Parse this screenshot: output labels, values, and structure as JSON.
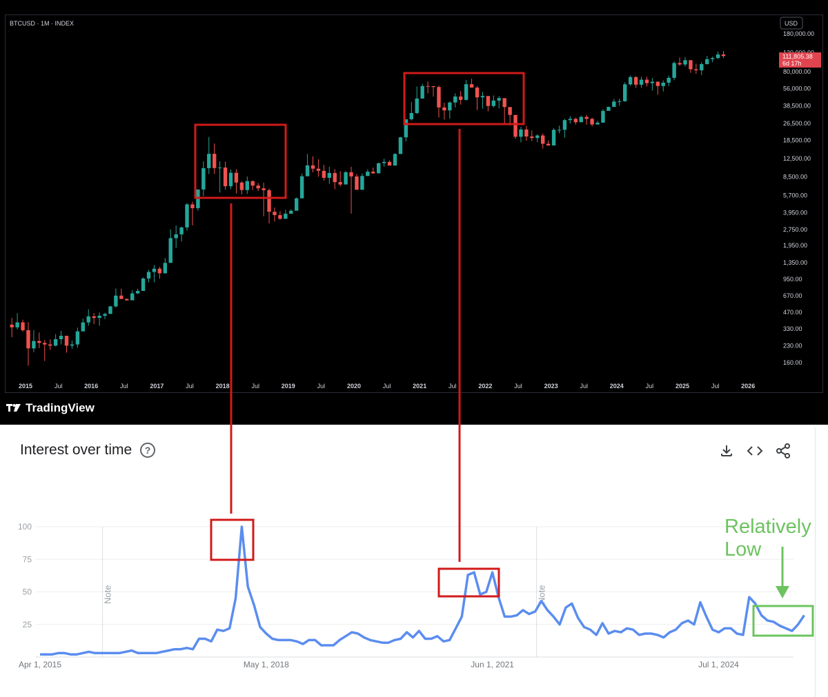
{
  "tradingview": {
    "symbol_label": "BTCUSD · 1M · INDEX",
    "currency_button": "USD",
    "brand": "TradingView",
    "price_badge": {
      "price": "111,805.38",
      "countdown": "6d 17h",
      "color": "#e0444e"
    },
    "colors": {
      "up": "#26a69a",
      "down": "#ef5350",
      "background": "#000000"
    }
  },
  "google_trends": {
    "title": "Interest over time",
    "help_icon": "help-circle-icon",
    "toolbar": {
      "download": "download-icon",
      "embed": "embed-code-icon",
      "share": "share-icon"
    },
    "note_label": "Note",
    "line_color": "#5b8def"
  },
  "annotations": {
    "relatively_low": [
      "Relatively",
      "Low"
    ],
    "box_color": "#d11a1a",
    "green_color": "#6cc35f"
  },
  "chart_data": [
    {
      "type": "candlestick",
      "title": "BTCUSD · 1M · INDEX",
      "y_scale": "log",
      "y_ticks": [
        160,
        230,
        330,
        470,
        670,
        950,
        1350,
        1950,
        2750,
        3950,
        5700,
        8500,
        12500,
        18500,
        26500,
        38500,
        56000,
        80000,
        120000,
        180000
      ],
      "y_tick_labels": [
        "160.00",
        "230.00",
        "330.00",
        "470.00",
        "670.00",
        "950.00",
        "1,350.00",
        "1,950.00",
        "2,750.00",
        "3,950.00",
        "5,700.00",
        "8,500.00",
        "12,500.00",
        "18,500.00",
        "26,500.00",
        "38,500.00",
        "56,000.00",
        "80,000.00",
        "120,000.00",
        "180,000.00"
      ],
      "x_tick_labels": [
        "2015",
        "Jul",
        "2016",
        "Jul",
        "2017",
        "Jul",
        "2018",
        "Jul",
        "2019",
        "Jul",
        "2020",
        "Jul",
        "2021",
        "Jul",
        "2022",
        "Jul",
        "2023",
        "Jul",
        "2024",
        "Jul",
        "2025",
        "Jul",
        "2026"
      ],
      "x_tick_years": [
        2015,
        2015.5,
        2016,
        2016.5,
        2017,
        2017.5,
        2018,
        2018.5,
        2019,
        2019.5,
        2020,
        2020.5,
        2021,
        2021.5,
        2022,
        2022.5,
        2023,
        2023.5,
        2024,
        2024.5,
        2025,
        2025.5,
        2026
      ],
      "start": "2014-10",
      "closes": [
        340,
        378,
        320,
        217,
        254,
        244,
        236,
        230,
        264,
        284,
        230,
        236,
        312,
        378,
        430,
        416,
        436,
        453,
        532,
        670,
        624,
        606,
        702,
        740,
        965,
        1110,
        1190,
        1080,
        1348,
        2286,
        2480,
        2875,
        4703,
        4338,
        6468,
        10198,
        13850,
        10220,
        10330,
        6930,
        9240,
        7494,
        6390,
        7730,
        7030,
        6625,
        6370,
        4017,
        3742,
        3457,
        3854,
        4105,
        5350,
        8574,
        10817,
        10085,
        9630,
        8293,
        9199,
        7569,
        7194,
        9350,
        8543,
        6424,
        8624,
        9455,
        9137,
        11351,
        11655,
        10779,
        13804,
        19700,
        28990,
        33114,
        45137,
        58918,
        58800,
        57720,
        37332,
        35040,
        41462,
        47130,
        43824,
        61318,
        57005,
        46306,
        47686,
        38483,
        43193,
        45538,
        37644,
        31792,
        19942,
        23303,
        20050,
        19423,
        20495,
        17168,
        16547,
        23125,
        23147,
        28478,
        29252,
        27220,
        30477,
        29232,
        25940,
        26962,
        34667,
        37712,
        42280,
        42580,
        61130,
        71330,
        60636,
        67530,
        62678,
        64626,
        58970,
        63330,
        70215,
        96450,
        93430,
        102430,
        84350,
        82550,
        94200,
        104630,
        107130,
        115760,
        111805
      ],
      "highs": [
        415,
        460,
        400,
        380,
        320,
        304,
        260,
        262,
        294,
        316,
        260,
        256,
        338,
        410,
        500,
        462,
        468,
        465,
        537,
        780,
        778,
        630,
        750,
        775,
        987,
        1165,
        1290,
        1240,
        1495,
        2760,
        3000,
        2920,
        4840,
        4975,
        6470,
        11800,
        19890,
        17260,
        11800,
        11710,
        9940,
        9990,
        7740,
        8520,
        7840,
        7420,
        7460,
        6600,
        4400,
        4060,
        4200,
        4220,
        5460,
        9070,
        13800,
        13130,
        12320,
        10950,
        10490,
        9990,
        9560,
        9590,
        10510,
        8990,
        9110,
        9960,
        10330,
        11420,
        12470,
        12050,
        14050,
        19900,
        29000,
        41960,
        58350,
        61790,
        64850,
        58960,
        59490,
        41300,
        42600,
        50500,
        52900,
        67000,
        69000,
        59100,
        52100,
        45800,
        48200,
        47450,
        40000,
        32400,
        31700,
        24670,
        25200,
        22800,
        21000,
        21470,
        18400,
        23920,
        25250,
        29180,
        30950,
        29980,
        31390,
        31800,
        30000,
        28000,
        35900,
        38000,
        44700,
        44990,
        63900,
        73800,
        72800,
        71900,
        72000,
        70000,
        65000,
        66500,
        73600,
        99800,
        108300,
        109600,
        99500,
        95000,
        97900,
        112000,
        110500,
        123200,
        124500
      ],
      "lows": [
        275,
        325,
        310,
        150,
        200,
        218,
        166,
        210,
        226,
        236,
        198,
        215,
        220,
        340,
        352,
        365,
        352,
        406,
        510,
        520,
        620,
        600,
        630,
        695,
        780,
        890,
        890,
        960,
        1070,
        1380,
        1850,
        2130,
        2680,
        3000,
        4110,
        5610,
        9000,
        9000,
        6050,
        6430,
        6500,
        5930,
        5800,
        5880,
        6380,
        6250,
        3650,
        3130,
        3260,
        3390,
        3760,
        4000,
        5050,
        7450,
        9100,
        9330,
        8500,
        7800,
        7300,
        6500,
        6910,
        8500,
        3860,
        6470,
        8100,
        9000,
        9000,
        10500,
        10550,
        11240,
        13300,
        18000,
        18100,
        28200,
        32400,
        45000,
        50350,
        47040,
        30100,
        28800,
        29300,
        37350,
        39600,
        43300,
        58500,
        35300,
        36400,
        34300,
        37200,
        36600,
        26700,
        25400,
        19100,
        17700,
        18300,
        18200,
        17750,
        15500,
        17140,
        19600,
        21500,
        19570,
        26500,
        25880,
        29000,
        25800,
        24900,
        26600,
        27200,
        36000,
        39900,
        38600,
        42200,
        59300,
        56600,
        56800,
        58400,
        53500,
        49000,
        52500,
        58900,
        66800,
        90800,
        89300,
        78200,
        76400,
        74500,
        93300,
        98200,
        105200,
        107300
      ]
    },
    {
      "type": "line",
      "title": "Interest over time",
      "ylim": [
        0,
        100
      ],
      "y_ticks": [
        100,
        75,
        50,
        25
      ],
      "x_tick_labels": [
        "Apr 1, 2015",
        "May 1, 2018",
        "Jun 1, 2021",
        "Jul 1, 2024"
      ],
      "x_tick_months": [
        0,
        37,
        74,
        111
      ],
      "notes_at_months": [
        10,
        81
      ],
      "start": "2015-04",
      "step_months": 1,
      "values": [
        2,
        2,
        2,
        3,
        3,
        2,
        2,
        3,
        4,
        3,
        3,
        3,
        3,
        3,
        4,
        5,
        3,
        3,
        3,
        3,
        4,
        5,
        6,
        6,
        7,
        6,
        14,
        14,
        12,
        21,
        20,
        22,
        45,
        100,
        54,
        40,
        23,
        18,
        14,
        13,
        13,
        13,
        12,
        10,
        13,
        13,
        9,
        9,
        9,
        13,
        16,
        19,
        18,
        15,
        13,
        12,
        11,
        11,
        13,
        14,
        19,
        15,
        20,
        14,
        14,
        16,
        12,
        13,
        22,
        31,
        63,
        65,
        48,
        50,
        65,
        46,
        31,
        31,
        32,
        36,
        33,
        35,
        43,
        36,
        31,
        25,
        38,
        41,
        30,
        23,
        21,
        17,
        26,
        18,
        20,
        19,
        22,
        21,
        17,
        18,
        18,
        17,
        15,
        19,
        21,
        26,
        28,
        25,
        42,
        31,
        21,
        19,
        22,
        22,
        18,
        17,
        46,
        41,
        32,
        28,
        27,
        24,
        22,
        20,
        25,
        32
      ]
    }
  ]
}
